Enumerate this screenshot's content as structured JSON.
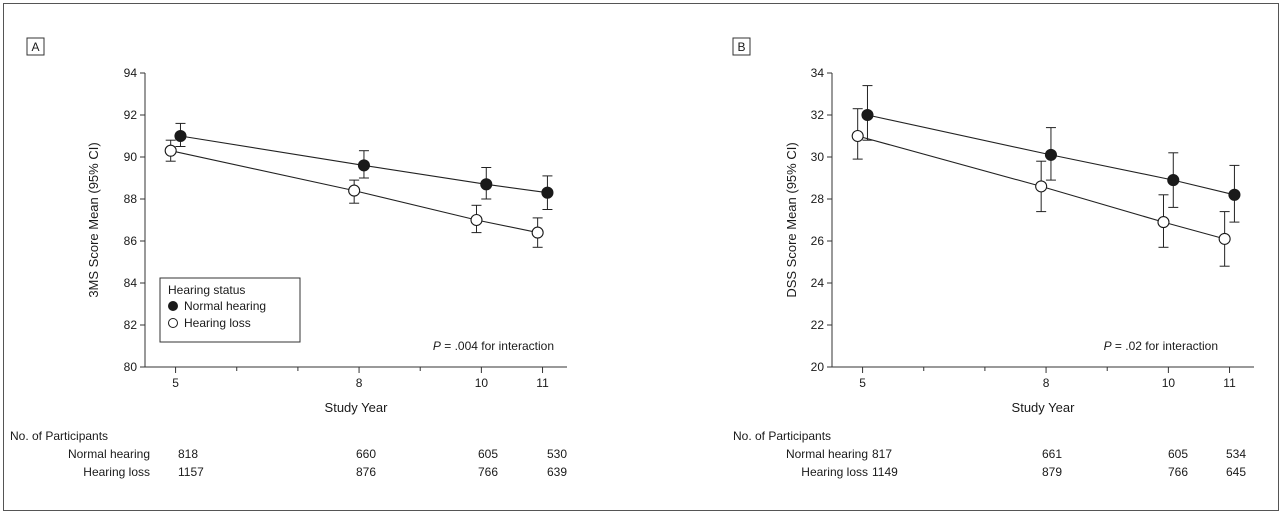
{
  "chart_data": [
    {
      "type": "line",
      "panel_label": "A",
      "xlabel": "Study Year",
      "ylabel": "3MS Score Mean (95% CI)",
      "x_ticks": [
        5,
        8,
        10,
        11
      ],
      "y_ticks": [
        80,
        82,
        84,
        86,
        88,
        90,
        92,
        94
      ],
      "xlim": [
        4.5,
        11.4
      ],
      "ylim": [
        80,
        94
      ],
      "annotation": {
        "italic": "P",
        "text": " = .004 for interaction"
      },
      "legend": {
        "title": "Hearing status",
        "placement": "bottom-left"
      },
      "series": [
        {
          "name": "Normal hearing",
          "marker": "filled",
          "x": [
            5,
            8,
            10,
            11
          ],
          "y": [
            91.0,
            89.6,
            88.7,
            88.3
          ],
          "ci_low": [
            90.5,
            89.0,
            88.0,
            87.5
          ],
          "ci_high": [
            91.6,
            90.3,
            89.5,
            89.1
          ]
        },
        {
          "name": "Hearing loss",
          "marker": "open",
          "x": [
            5,
            8,
            10,
            11
          ],
          "y": [
            90.3,
            88.4,
            87.0,
            86.4
          ],
          "ci_low": [
            89.8,
            87.8,
            86.4,
            85.7
          ],
          "ci_high": [
            90.8,
            88.9,
            87.7,
            87.1
          ]
        }
      ],
      "participants": {
        "title": "No. of Participants",
        "rows": [
          {
            "label": "Normal hearing",
            "counts": [
              "818",
              "660",
              "605",
              "530"
            ]
          },
          {
            "label": "Hearing loss",
            "counts": [
              "1157",
              "876",
              "766",
              "639"
            ]
          }
        ]
      }
    },
    {
      "type": "line",
      "panel_label": "B",
      "xlabel": "Study Year",
      "ylabel": "DSS Score Mean (95% CI)",
      "x_ticks": [
        5,
        8,
        10,
        11
      ],
      "y_ticks": [
        20,
        22,
        24,
        26,
        28,
        30,
        32,
        34
      ],
      "xlim": [
        4.5,
        11.4
      ],
      "ylim": [
        20,
        34
      ],
      "annotation": {
        "italic": "P",
        "text": " = .02 for interaction"
      },
      "series": [
        {
          "name": "Normal hearing",
          "marker": "filled",
          "x": [
            5,
            8,
            10,
            11
          ],
          "y": [
            32.0,
            30.1,
            28.9,
            28.2
          ],
          "ci_low": [
            30.8,
            28.9,
            27.6,
            26.9
          ],
          "ci_high": [
            33.4,
            31.4,
            30.2,
            29.6
          ]
        },
        {
          "name": "Hearing loss",
          "marker": "open",
          "x": [
            5,
            8,
            10,
            11
          ],
          "y": [
            31.0,
            28.6,
            26.9,
            26.1
          ],
          "ci_low": [
            29.9,
            27.4,
            25.7,
            24.8
          ],
          "ci_high": [
            32.3,
            29.8,
            28.2,
            27.4
          ]
        }
      ],
      "participants": {
        "title": "No. of Participants",
        "rows": [
          {
            "label": "Normal hearing",
            "counts": [
              "817",
              "661",
              "605",
              "534"
            ]
          },
          {
            "label": "Hearing loss",
            "counts": [
              "1149",
              "879",
              "766",
              "645"
            ]
          }
        ]
      }
    }
  ]
}
